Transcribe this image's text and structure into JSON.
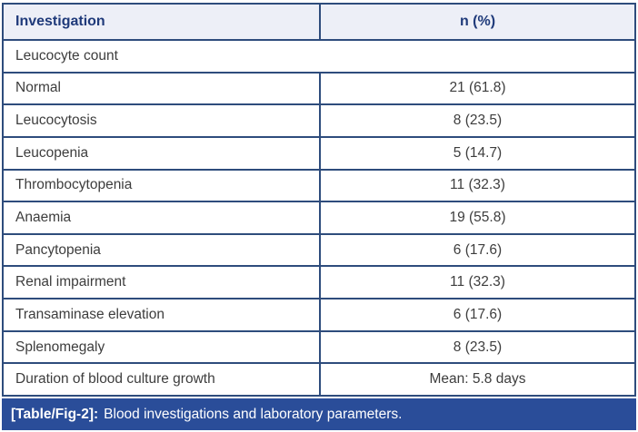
{
  "table": {
    "columns": [
      "Investigation",
      "n (%)"
    ],
    "section_row": "Leucocyte count",
    "rows": [
      {
        "label": "Normal",
        "value": "21 (61.8)"
      },
      {
        "label": "Leucocytosis",
        "value": "8 (23.5)"
      },
      {
        "label": "Leucopenia",
        "value": "5 (14.7)"
      },
      {
        "label": "Thrombocytopenia",
        "value": "11 (32.3)"
      },
      {
        "label": "Anaemia",
        "value": "19 (55.8)"
      },
      {
        "label": "Pancytopenia",
        "value": "6 (17.6)"
      },
      {
        "label": "Renal impairment",
        "value": "11 (32.3)"
      },
      {
        "label": "Transaminase elevation",
        "value": "6 (17.6)"
      },
      {
        "label": "Splenomegaly",
        "value": "8 (23.5)"
      },
      {
        "label": "Duration of blood culture growth",
        "value": "Mean: 5.8 days"
      }
    ],
    "caption": {
      "tag": "[Table/Fig-2]:",
      "text": "Blood investigations and laboratory parameters."
    },
    "colors": {
      "border": "#2e4c7c",
      "header_background": "#edeff7",
      "header_text": "#1f3a7a",
      "body_text": "#3d3d3d",
      "caption_background": "#2a4d99",
      "caption_text": "#ffffff"
    }
  }
}
